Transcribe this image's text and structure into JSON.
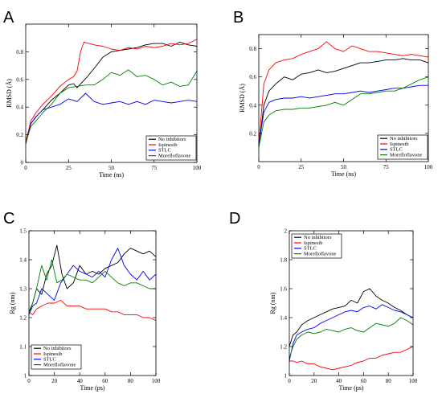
{
  "chart_data": [
    {
      "panel": "A",
      "type": "line",
      "xlabel": "Time (ns)",
      "ylabel": "RMSD (Å)",
      "xlim": [
        0,
        100
      ],
      "ylim": [
        0,
        1.0
      ],
      "xticks": [
        "0",
        "25",
        "50",
        "75",
        "100"
      ],
      "yticks": [
        "0",
        "0.2",
        "0.4",
        "0.6",
        "0.8"
      ],
      "legend_position": "bottom-right",
      "series": [
        {
          "name": "No inhibitors",
          "color": "#000000",
          "x": [
            0,
            3,
            6,
            10,
            15,
            20,
            25,
            28,
            30,
            33,
            36,
            40,
            45,
            50,
            55,
            60,
            65,
            70,
            75,
            80,
            85,
            90,
            95,
            100
          ],
          "y": [
            0.15,
            0.28,
            0.33,
            0.38,
            0.45,
            0.5,
            0.56,
            0.57,
            0.54,
            0.58,
            0.62,
            0.68,
            0.76,
            0.8,
            0.81,
            0.82,
            0.83,
            0.85,
            0.86,
            0.86,
            0.84,
            0.87,
            0.85,
            0.84
          ]
        },
        {
          "name": "Ispinesib",
          "color": "#ff0000",
          "x": [
            0,
            3,
            6,
            10,
            15,
            20,
            25,
            28,
            30,
            32,
            34,
            37,
            40,
            45,
            50,
            55,
            60,
            65,
            70,
            75,
            80,
            85,
            90,
            95,
            100
          ],
          "y": [
            0.15,
            0.3,
            0.36,
            0.42,
            0.48,
            0.55,
            0.6,
            0.62,
            0.66,
            0.8,
            0.87,
            0.86,
            0.85,
            0.84,
            0.82,
            0.81,
            0.83,
            0.82,
            0.84,
            0.83,
            0.84,
            0.86,
            0.85,
            0.86,
            0.89
          ]
        },
        {
          "name": "STLC",
          "color": "#0000ff",
          "x": [
            0,
            3,
            6,
            10,
            15,
            20,
            25,
            30,
            35,
            40,
            45,
            50,
            55,
            60,
            65,
            70,
            75,
            80,
            85,
            90,
            95,
            100
          ],
          "y": [
            0.13,
            0.28,
            0.33,
            0.38,
            0.4,
            0.42,
            0.46,
            0.44,
            0.5,
            0.44,
            0.42,
            0.43,
            0.44,
            0.42,
            0.44,
            0.42,
            0.45,
            0.44,
            0.43,
            0.44,
            0.45,
            0.44
          ]
        },
        {
          "name": "Morelloflavone",
          "color": "#008000",
          "x": [
            0,
            3,
            6,
            10,
            15,
            20,
            25,
            30,
            35,
            40,
            45,
            50,
            55,
            60,
            65,
            70,
            75,
            80,
            85,
            90,
            95,
            100
          ],
          "y": [
            0.14,
            0.26,
            0.3,
            0.36,
            0.42,
            0.5,
            0.54,
            0.55,
            0.56,
            0.56,
            0.6,
            0.65,
            0.63,
            0.67,
            0.62,
            0.63,
            0.6,
            0.56,
            0.58,
            0.55,
            0.56,
            0.66
          ]
        }
      ]
    },
    {
      "panel": "B",
      "type": "line",
      "xlabel": "Time (ns)",
      "ylabel": "RMSD (Å)",
      "xlim": [
        0,
        100
      ],
      "ylim": [
        0,
        0.9
      ],
      "xticks": [
        "0",
        "25",
        "50",
        "75",
        "100"
      ],
      "yticks": [
        "0.2",
        "0.4",
        "0.6",
        "0.8"
      ],
      "legend_position": "bottom-right",
      "series": [
        {
          "name": "No inhibitors",
          "color": "#000000",
          "x": [
            0,
            3,
            6,
            10,
            15,
            20,
            25,
            30,
            35,
            40,
            45,
            50,
            55,
            60,
            65,
            70,
            75,
            80,
            85,
            90,
            95,
            100
          ],
          "y": [
            0.1,
            0.4,
            0.5,
            0.55,
            0.6,
            0.58,
            0.62,
            0.63,
            0.65,
            0.63,
            0.64,
            0.66,
            0.68,
            0.7,
            0.7,
            0.71,
            0.72,
            0.72,
            0.73,
            0.72,
            0.72,
            0.7
          ]
        },
        {
          "name": "Ispinesib",
          "color": "#ff0000",
          "x": [
            0,
            3,
            6,
            10,
            15,
            20,
            25,
            30,
            35,
            40,
            45,
            50,
            55,
            60,
            65,
            70,
            75,
            80,
            85,
            90,
            95,
            100
          ],
          "y": [
            0.12,
            0.55,
            0.65,
            0.7,
            0.72,
            0.73,
            0.76,
            0.78,
            0.8,
            0.85,
            0.8,
            0.78,
            0.82,
            0.8,
            0.78,
            0.78,
            0.77,
            0.76,
            0.75,
            0.76,
            0.75,
            0.74
          ]
        },
        {
          "name": "STLC",
          "color": "#0000ff",
          "x": [
            0,
            3,
            6,
            10,
            15,
            20,
            25,
            30,
            35,
            40,
            45,
            50,
            55,
            60,
            65,
            70,
            75,
            80,
            85,
            90,
            95,
            100
          ],
          "y": [
            0.12,
            0.35,
            0.42,
            0.44,
            0.45,
            0.45,
            0.46,
            0.45,
            0.46,
            0.47,
            0.48,
            0.48,
            0.49,
            0.5,
            0.49,
            0.5,
            0.51,
            0.52,
            0.52,
            0.53,
            0.54,
            0.54
          ]
        },
        {
          "name": "Morelloflavone",
          "color": "#008000",
          "x": [
            0,
            3,
            6,
            10,
            15,
            20,
            25,
            30,
            35,
            40,
            45,
            50,
            55,
            60,
            65,
            70,
            75,
            80,
            85,
            90,
            95,
            100
          ],
          "y": [
            0.1,
            0.28,
            0.33,
            0.36,
            0.37,
            0.37,
            0.38,
            0.38,
            0.39,
            0.4,
            0.42,
            0.4,
            0.44,
            0.48,
            0.48,
            0.49,
            0.5,
            0.5,
            0.52,
            0.55,
            0.58,
            0.6
          ]
        }
      ]
    },
    {
      "panel": "C",
      "type": "line",
      "xlabel": "Time (ps)",
      "ylabel": "Rg (nm)",
      "xlim": [
        0,
        100
      ],
      "ylim": [
        1.0,
        1.5
      ],
      "xticks": [
        "0",
        "20",
        "40",
        "60",
        "80",
        "100"
      ],
      "yticks": [
        "1",
        "1.1",
        "1.2",
        "1.3",
        "1.4",
        "1.5"
      ],
      "legend_position": "bottom-left",
      "series": [
        {
          "name": "No inhibitors",
          "color": "#000000",
          "x": [
            0,
            3,
            6,
            10,
            14,
            18,
            22,
            26,
            30,
            35,
            40,
            45,
            50,
            55,
            60,
            65,
            70,
            75,
            80,
            85,
            90,
            95,
            100
          ],
          "y": [
            1.22,
            1.25,
            1.3,
            1.28,
            1.35,
            1.38,
            1.45,
            1.35,
            1.3,
            1.32,
            1.38,
            1.35,
            1.36,
            1.35,
            1.37,
            1.38,
            1.39,
            1.42,
            1.44,
            1.43,
            1.42,
            1.43,
            1.41
          ]
        },
        {
          "name": "Ispinesib",
          "color": "#ff0000",
          "x": [
            0,
            3,
            6,
            10,
            15,
            20,
            25,
            30,
            35,
            40,
            45,
            50,
            55,
            60,
            65,
            70,
            75,
            80,
            85,
            90,
            95,
            100
          ],
          "y": [
            1.22,
            1.21,
            1.23,
            1.24,
            1.25,
            1.25,
            1.26,
            1.24,
            1.24,
            1.24,
            1.23,
            1.23,
            1.23,
            1.23,
            1.22,
            1.22,
            1.21,
            1.21,
            1.21,
            1.2,
            1.2,
            1.19
          ]
        },
        {
          "name": "STLC",
          "color": "#0000ff",
          "x": [
            0,
            3,
            6,
            10,
            15,
            20,
            25,
            30,
            35,
            40,
            45,
            50,
            55,
            60,
            65,
            70,
            75,
            80,
            85,
            90,
            95,
            100
          ],
          "y": [
            1.21,
            1.24,
            1.25,
            1.3,
            1.28,
            1.26,
            1.32,
            1.35,
            1.38,
            1.36,
            1.35,
            1.34,
            1.36,
            1.34,
            1.4,
            1.44,
            1.38,
            1.35,
            1.33,
            1.36,
            1.33,
            1.35
          ]
        },
        {
          "name": "Morelloflavone",
          "color": "#008000",
          "x": [
            0,
            3,
            6,
            10,
            14,
            18,
            22,
            26,
            30,
            35,
            40,
            45,
            50,
            55,
            60,
            65,
            70,
            75,
            80,
            85,
            90,
            95,
            100
          ],
          "y": [
            1.21,
            1.25,
            1.3,
            1.38,
            1.33,
            1.4,
            1.32,
            1.33,
            1.35,
            1.34,
            1.33,
            1.33,
            1.32,
            1.34,
            1.36,
            1.34,
            1.32,
            1.31,
            1.32,
            1.32,
            1.31,
            1.3,
            1.3
          ]
        }
      ]
    },
    {
      "panel": "D",
      "type": "line",
      "xlabel": "Time (ps)",
      "ylabel": "Rg (nm)",
      "xlim": [
        0,
        100
      ],
      "ylim": [
        1.0,
        2.0
      ],
      "xticks": [
        "0",
        "20",
        "40",
        "60",
        "80",
        "100"
      ],
      "yticks": [
        "1",
        "1.2",
        "1.4",
        "1.6",
        "1.8",
        "2"
      ],
      "legend_position": "top-left",
      "series": [
        {
          "name": "No inhibitors",
          "color": "#000000",
          "x": [
            0,
            3,
            6,
            10,
            15,
            20,
            25,
            30,
            35,
            40,
            45,
            50,
            55,
            60,
            65,
            70,
            75,
            80,
            85,
            90,
            95,
            100
          ],
          "y": [
            1.2,
            1.28,
            1.3,
            1.35,
            1.38,
            1.4,
            1.42,
            1.44,
            1.46,
            1.47,
            1.48,
            1.52,
            1.5,
            1.58,
            1.6,
            1.55,
            1.52,
            1.5,
            1.47,
            1.45,
            1.42,
            1.4
          ]
        },
        {
          "name": "Ispinesib",
          "color": "#ff0000",
          "x": [
            0,
            3,
            6,
            10,
            15,
            20,
            25,
            30,
            35,
            40,
            45,
            50,
            55,
            60,
            65,
            70,
            75,
            80,
            85,
            90,
            95,
            100
          ],
          "y": [
            1.1,
            1.1,
            1.09,
            1.1,
            1.08,
            1.08,
            1.06,
            1.05,
            1.04,
            1.05,
            1.06,
            1.07,
            1.09,
            1.1,
            1.12,
            1.12,
            1.14,
            1.15,
            1.16,
            1.16,
            1.18,
            1.2
          ]
        },
        {
          "name": "STLC",
          "color": "#0000ff",
          "x": [
            0,
            3,
            6,
            10,
            15,
            20,
            25,
            30,
            35,
            40,
            45,
            50,
            55,
            60,
            65,
            70,
            75,
            80,
            85,
            90,
            95,
            100
          ],
          "y": [
            1.1,
            1.22,
            1.28,
            1.3,
            1.32,
            1.33,
            1.36,
            1.38,
            1.4,
            1.42,
            1.44,
            1.45,
            1.44,
            1.47,
            1.48,
            1.46,
            1.49,
            1.47,
            1.45,
            1.44,
            1.42,
            1.4
          ]
        },
        {
          "name": "Morelloflavone",
          "color": "#008000",
          "x": [
            0,
            3,
            6,
            10,
            15,
            20,
            25,
            30,
            35,
            40,
            45,
            50,
            55,
            60,
            65,
            70,
            75,
            80,
            85,
            90,
            95,
            100
          ],
          "y": [
            1.12,
            1.2,
            1.25,
            1.28,
            1.3,
            1.29,
            1.3,
            1.32,
            1.31,
            1.3,
            1.32,
            1.33,
            1.31,
            1.3,
            1.33,
            1.36,
            1.35,
            1.34,
            1.36,
            1.4,
            1.38,
            1.35
          ]
        }
      ]
    }
  ]
}
